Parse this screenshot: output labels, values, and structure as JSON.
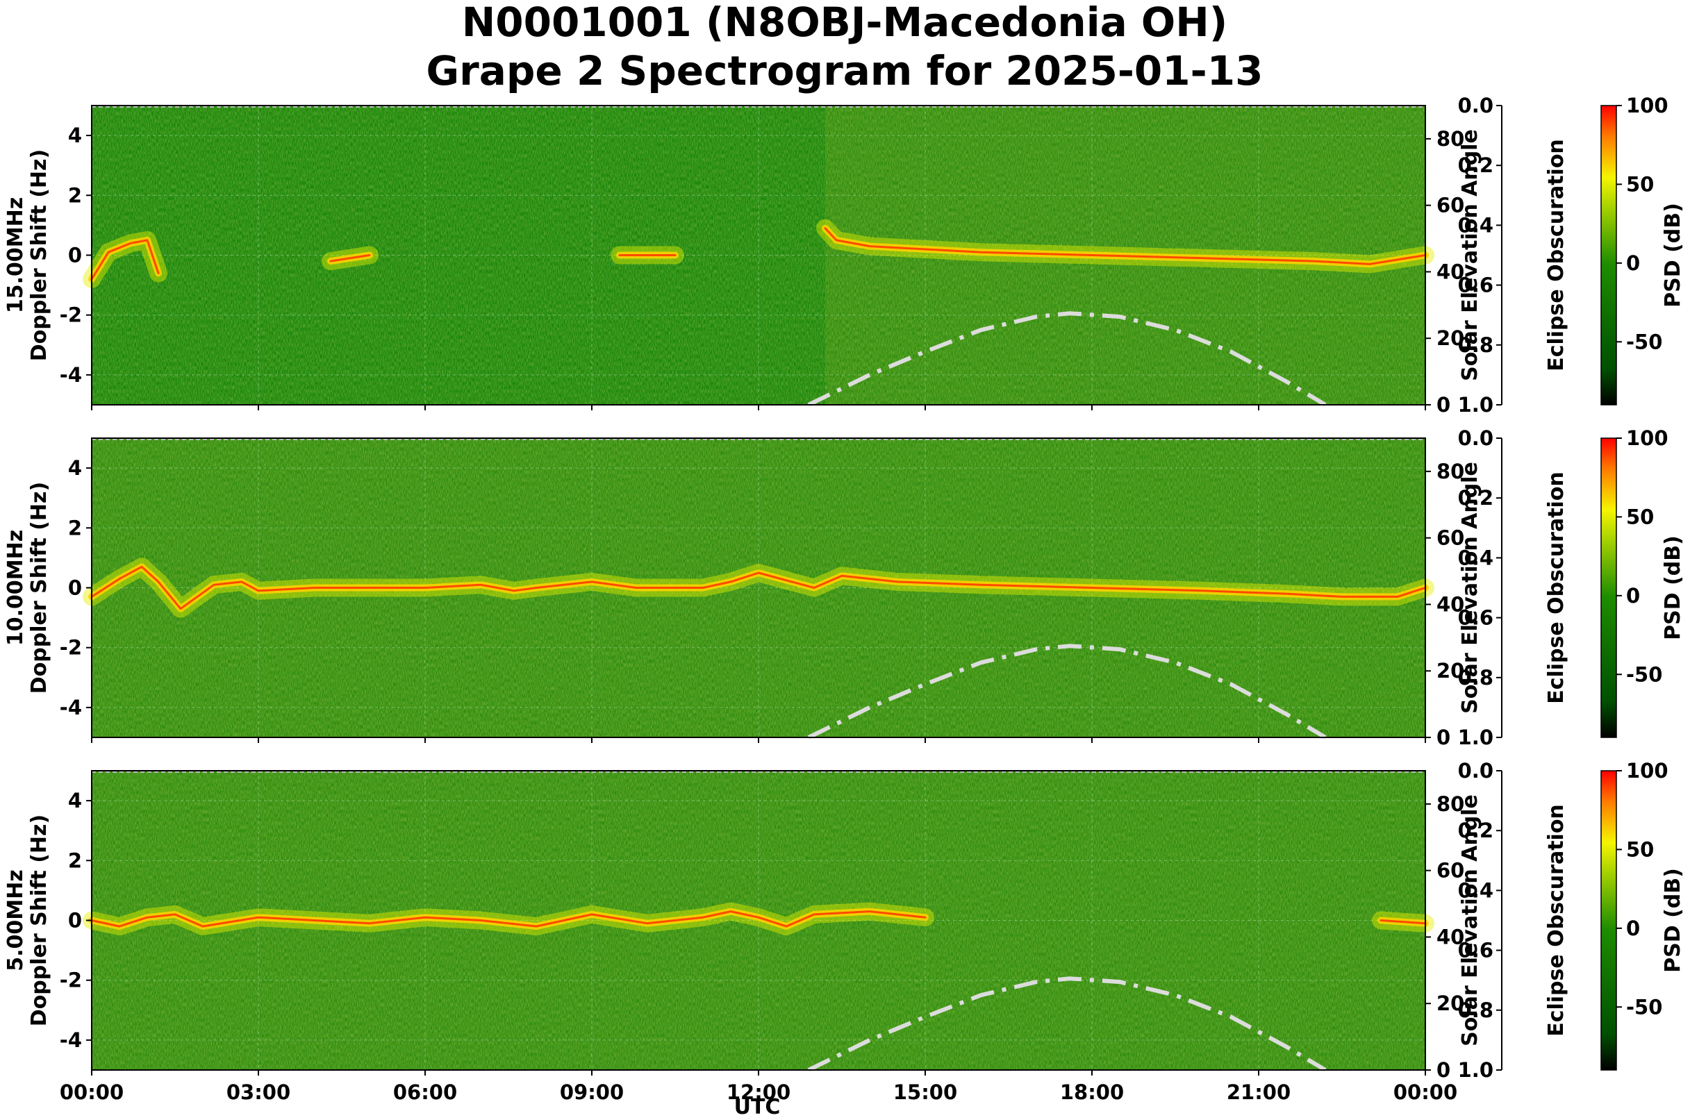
{
  "chart_data": {
    "type": "heatmap",
    "title": [
      "N0001001 (N8OBJ-Macedonia OH)",
      "Grape 2 Spectrogram for 2025-01-13"
    ],
    "xlabel": "UTC",
    "x_ticks": [
      "00:00",
      "03:00",
      "06:00",
      "09:00",
      "12:00",
      "15:00",
      "18:00",
      "21:00",
      "00:00"
    ],
    "x_range_hours": [
      0,
      24
    ],
    "y_ticks": [
      4,
      2,
      0,
      -2,
      -4
    ],
    "y_range": [
      -5,
      5
    ],
    "solar_axis": {
      "label": "Solar Elevation Angle",
      "ticks": [
        80,
        60,
        40,
        20,
        0
      ],
      "range": [
        0,
        90
      ]
    },
    "eclipse_axis": {
      "label": "Eclipse Obscuration",
      "ticks": [
        "0.0",
        "0.2",
        "0.4",
        "0.6",
        "0.8",
        "1.0"
      ],
      "range": [
        0,
        1
      ],
      "inverted": true
    },
    "colorbar": {
      "label": "PSD (dB)",
      "ticks": [
        100,
        50,
        0,
        -50
      ],
      "range": [
        -90,
        100
      ],
      "colors": [
        "#000000",
        "#005000",
        "#1e8c00",
        "#a6d200",
        "#f5f500",
        "#ff7800",
        "#ff0000"
      ]
    },
    "panels": [
      {
        "ylabel": "15.00MHz",
        "ylabel2": "Doppler Shift (Hz)",
        "signal_start_hour": 13.2,
        "trace": [
          [
            0,
            -0.8
          ],
          [
            0.3,
            0.1
          ],
          [
            0.7,
            0.4
          ],
          [
            1.0,
            0.5
          ],
          [
            1.2,
            -0.6
          ],
          [
            1.4,
            null
          ],
          [
            4.3,
            -0.2
          ],
          [
            5.0,
            0.0
          ],
          [
            5.5,
            null
          ],
          [
            9.5,
            0.0
          ],
          [
            10.5,
            0.0
          ],
          [
            10.9,
            null
          ],
          [
            13.2,
            0.9
          ],
          [
            13.4,
            0.5
          ],
          [
            14.0,
            0.3
          ],
          [
            16.0,
            0.1
          ],
          [
            18.0,
            0.0
          ],
          [
            20.0,
            -0.1
          ],
          [
            22.0,
            -0.2
          ],
          [
            23.0,
            -0.3
          ],
          [
            24.0,
            0.0
          ]
        ]
      },
      {
        "ylabel": "10.00MHz",
        "ylabel2": "Doppler Shift (Hz)",
        "signal_start_hour": 0,
        "trace": [
          [
            0,
            -0.3
          ],
          [
            0.5,
            0.3
          ],
          [
            0.9,
            0.7
          ],
          [
            1.2,
            0.2
          ],
          [
            1.6,
            -0.7
          ],
          [
            2.2,
            0.1
          ],
          [
            2.7,
            0.2
          ],
          [
            3.0,
            -0.1
          ],
          [
            4.0,
            0.0
          ],
          [
            5.0,
            0.0
          ],
          [
            6.0,
            0.0
          ],
          [
            7.0,
            0.1
          ],
          [
            7.6,
            -0.1
          ],
          [
            8.0,
            0.0
          ],
          [
            9.0,
            0.2
          ],
          [
            9.8,
            0.0
          ],
          [
            10.5,
            0.0
          ],
          [
            11.0,
            0.0
          ],
          [
            11.5,
            0.2
          ],
          [
            12.0,
            0.5
          ],
          [
            12.6,
            0.2
          ],
          [
            13.0,
            0.0
          ],
          [
            13.5,
            0.4
          ],
          [
            14.5,
            0.2
          ],
          [
            16.0,
            0.1
          ],
          [
            18.0,
            0.0
          ],
          [
            20.0,
            -0.1
          ],
          [
            21.5,
            -0.2
          ],
          [
            22.5,
            -0.3
          ],
          [
            23.5,
            -0.3
          ],
          [
            24.0,
            0.0
          ]
        ]
      },
      {
        "ylabel": "5.00MHz",
        "ylabel2": "Doppler Shift (Hz)",
        "signal_start_hour": 0,
        "trace": [
          [
            0,
            0.0
          ],
          [
            0.5,
            -0.2
          ],
          [
            1.0,
            0.1
          ],
          [
            1.5,
            0.2
          ],
          [
            2.0,
            -0.2
          ],
          [
            3.0,
            0.1
          ],
          [
            4.0,
            0.0
          ],
          [
            5.0,
            -0.1
          ],
          [
            6.0,
            0.1
          ],
          [
            7.0,
            0.0
          ],
          [
            8.0,
            -0.2
          ],
          [
            9.0,
            0.2
          ],
          [
            10.0,
            -0.1
          ],
          [
            11.0,
            0.1
          ],
          [
            11.5,
            0.3
          ],
          [
            12.0,
            0.1
          ],
          [
            12.5,
            -0.2
          ],
          [
            13.0,
            0.2
          ],
          [
            14.0,
            0.3
          ],
          [
            15.0,
            0.1
          ],
          [
            15.5,
            null
          ],
          [
            23.2,
            0.0
          ],
          [
            24.0,
            -0.1
          ]
        ]
      }
    ],
    "solar_curve": {
      "style": "dash-dot",
      "color": "#dcdcdc",
      "points": [
        [
          12.9,
          0
        ],
        [
          14.0,
          9
        ],
        [
          15.0,
          16
        ],
        [
          16.0,
          22.5
        ],
        [
          17.0,
          26.5
        ],
        [
          17.6,
          27.5
        ],
        [
          18.5,
          26.5
        ],
        [
          19.5,
          22.5
        ],
        [
          20.5,
          16
        ],
        [
          21.5,
          7
        ],
        [
          22.2,
          0
        ]
      ]
    }
  }
}
